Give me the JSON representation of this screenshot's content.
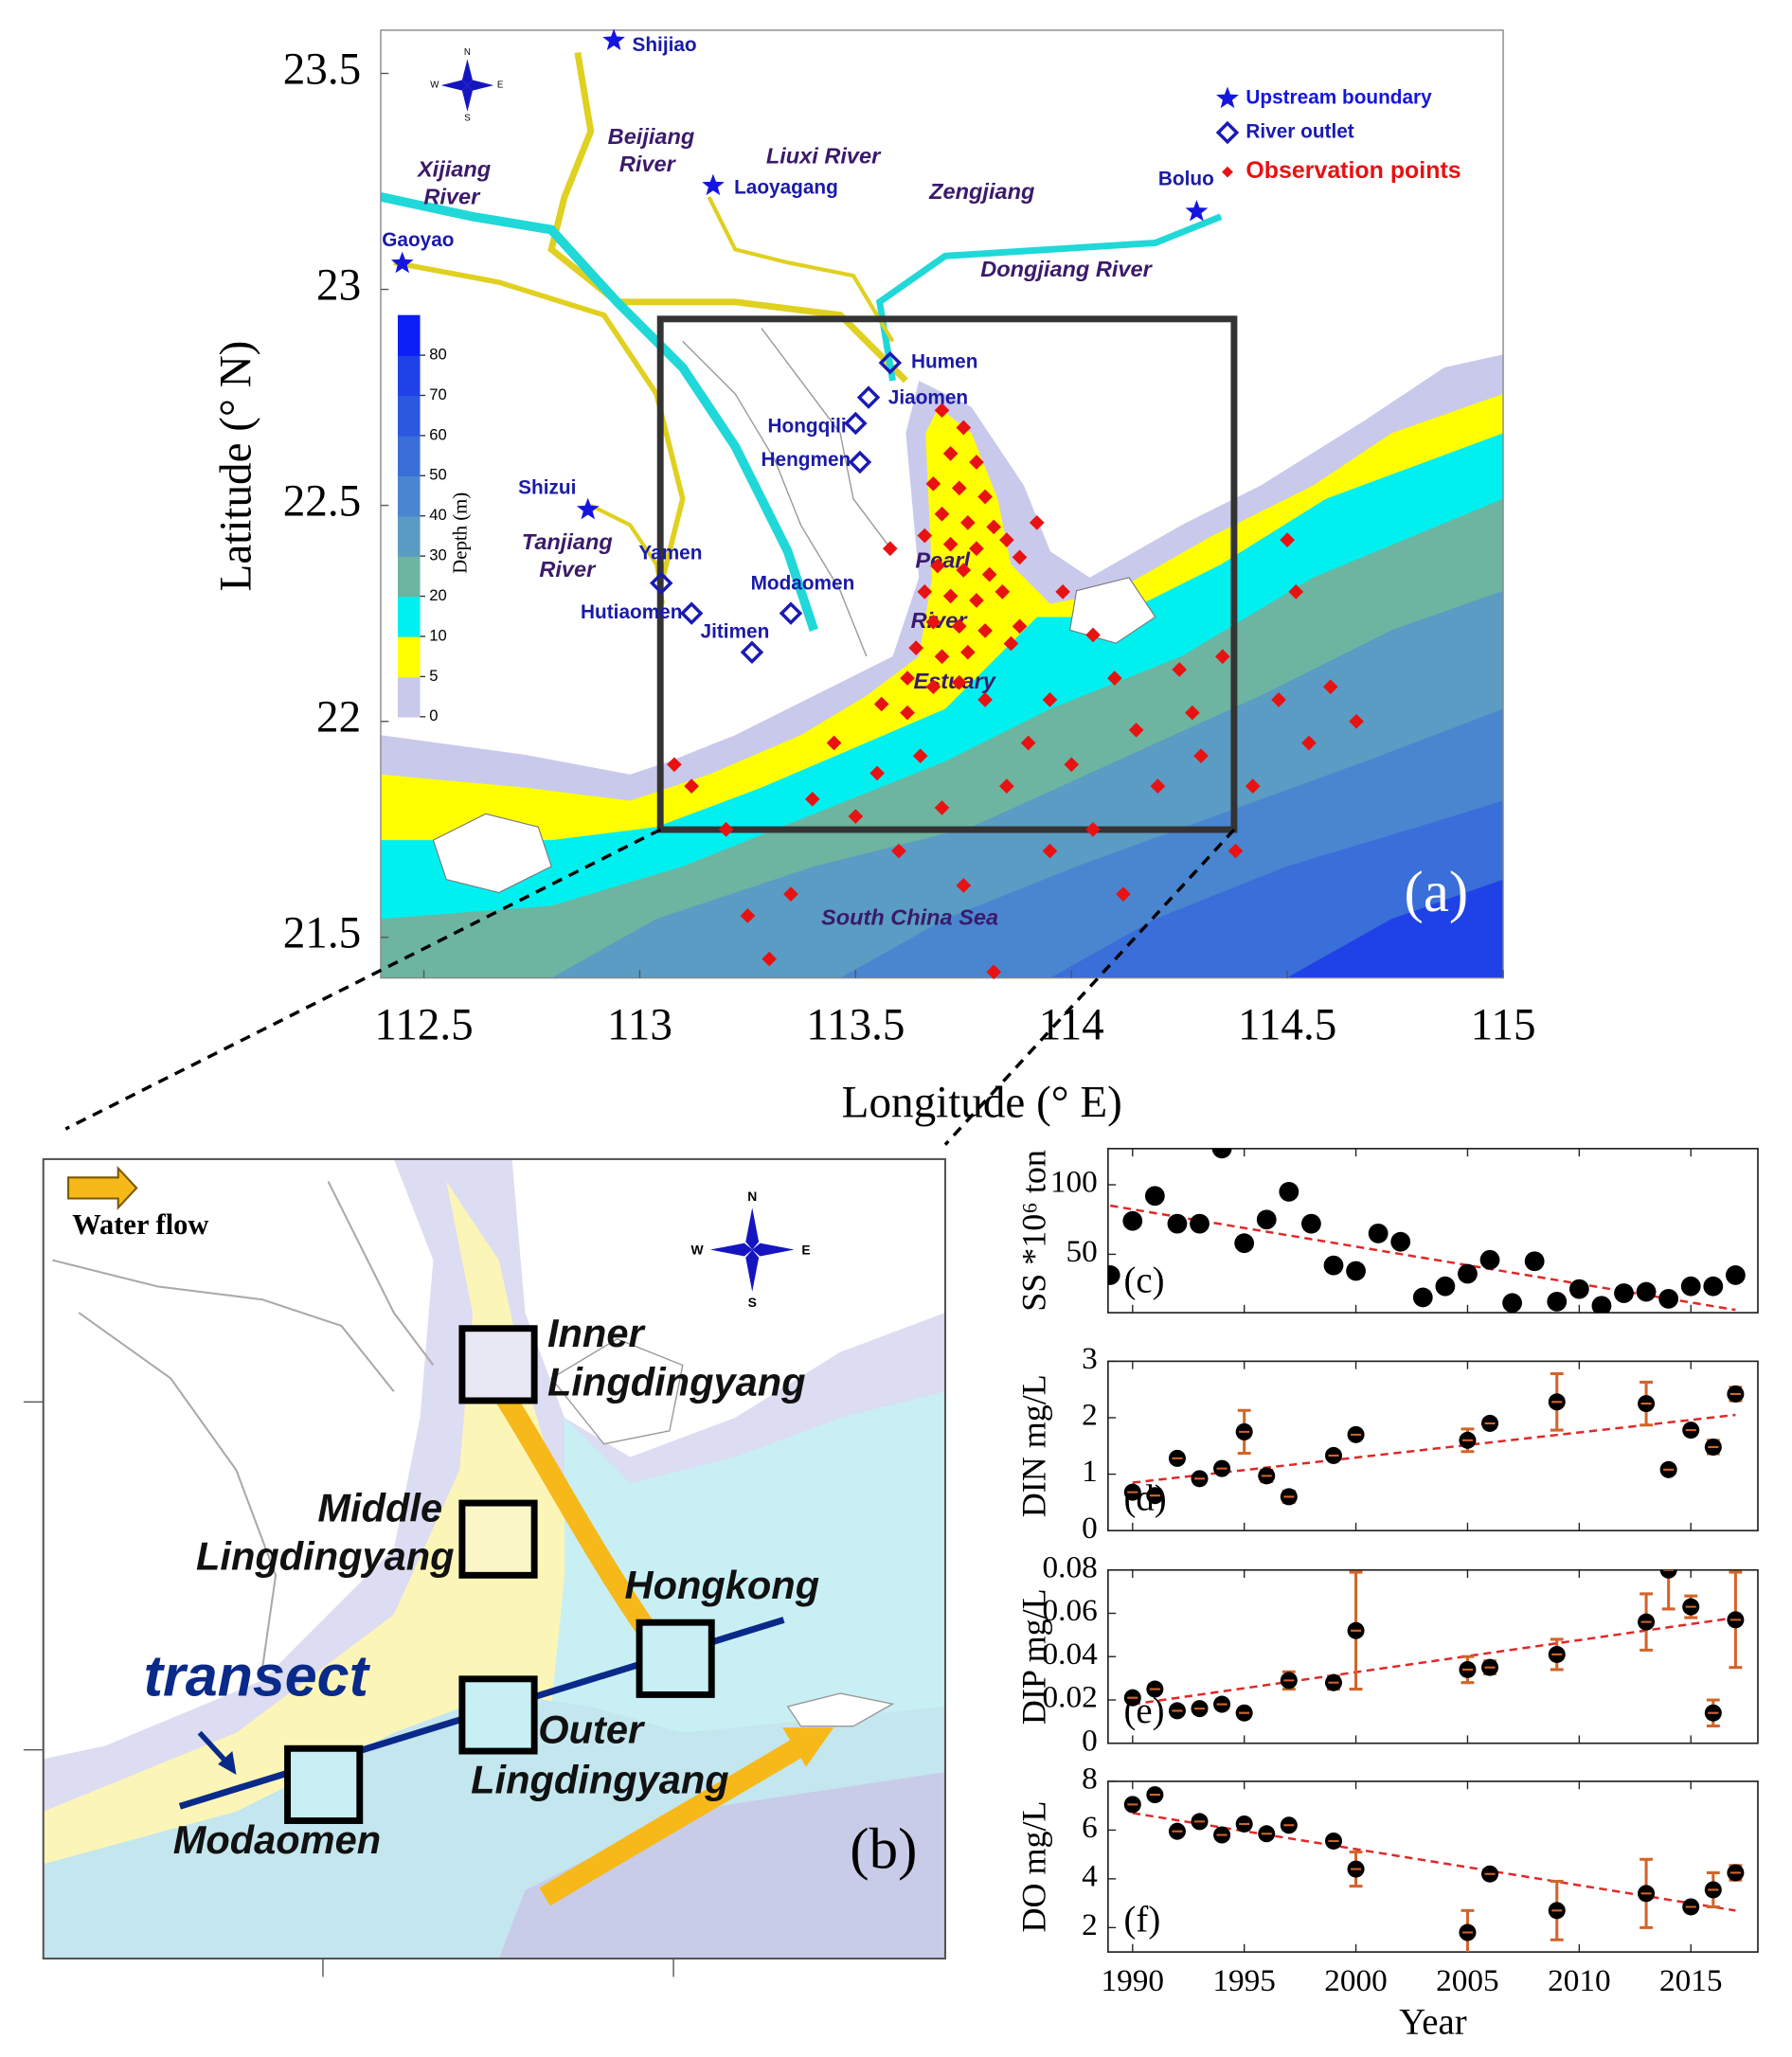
{
  "map_a": {
    "panel_label": "(a)",
    "xlabel": "Longitude (° E)",
    "ylabel": "Latitude (° N)",
    "xlim": [
      112.4,
      115
    ],
    "ylim": [
      21.406,
      23.6
    ],
    "xticks": [
      112.5,
      113,
      113.5,
      114,
      114.5,
      115
    ],
    "yticks": [
      21.5,
      22,
      22.5,
      23,
      23.5
    ],
    "compass": [
      "N",
      "S",
      "W",
      "E"
    ],
    "places": [
      {
        "lines": [
          "Beijiang",
          "River"
        ]
      },
      {
        "lines": [
          "Xijiang",
          "River"
        ]
      },
      {
        "lines": [
          "Liuxi River"
        ]
      },
      {
        "lines": [
          "Zengjiang"
        ]
      },
      {
        "lines": [
          "Dongjiang River"
        ]
      },
      {
        "lines": [
          "Tanjiang",
          "River"
        ]
      },
      {
        "lines": [
          "Pearl",
          "River",
          "Estuary"
        ]
      },
      {
        "lines": [
          "South China Sea"
        ]
      }
    ],
    "legend": [
      {
        "label": "Upstream boundary",
        "color": "#1515e0"
      },
      {
        "label": "River outlet",
        "color": "#1a1ab4"
      },
      {
        "label": "Observation points",
        "color": "#e81212"
      }
    ],
    "upstream_boundaries": [
      {
        "name": "Shijiao",
        "lon": 112.94,
        "lat": 23.576
      },
      {
        "name": "Gaoyao",
        "lon": 112.45,
        "lat": 23.06
      },
      {
        "name": "Laoyagang",
        "lon": 113.17,
        "lat": 23.24
      },
      {
        "name": "Boluo",
        "lon": 114.29,
        "lat": 23.18
      },
      {
        "name": "Shizui",
        "lon": 112.88,
        "lat": 22.49
      }
    ],
    "river_outlets": [
      {
        "name": "Humen",
        "lon": 113.58,
        "lat": 22.83
      },
      {
        "name": "Jiaomen",
        "lon": 113.53,
        "lat": 22.75
      },
      {
        "name": "Hongqili",
        "lon": 113.5,
        "lat": 22.69
      },
      {
        "name": "Hengmen",
        "lon": 113.51,
        "lat": 22.6
      },
      {
        "name": "Yamen",
        "lon": 113.05,
        "lat": 22.32
      },
      {
        "name": "Hutiaomen",
        "lon": 113.12,
        "lat": 22.25
      },
      {
        "name": "Modaomen",
        "lon": 113.35,
        "lat": 22.25
      },
      {
        "name": "Jitimen",
        "lon": 113.26,
        "lat": 22.16
      }
    ],
    "observation_points": [
      [
        113.7,
        22.72
      ],
      [
        113.75,
        22.68
      ],
      [
        113.72,
        22.62
      ],
      [
        113.78,
        22.6
      ],
      [
        113.68,
        22.55
      ],
      [
        113.74,
        22.54
      ],
      [
        113.8,
        22.52
      ],
      [
        113.7,
        22.48
      ],
      [
        113.76,
        22.46
      ],
      [
        113.82,
        22.45
      ],
      [
        113.66,
        22.43
      ],
      [
        113.72,
        22.41
      ],
      [
        113.78,
        22.4
      ],
      [
        113.85,
        22.42
      ],
      [
        113.69,
        22.36
      ],
      [
        113.75,
        22.35
      ],
      [
        113.81,
        22.34
      ],
      [
        113.88,
        22.38
      ],
      [
        113.66,
        22.3
      ],
      [
        113.72,
        22.29
      ],
      [
        113.78,
        22.28
      ],
      [
        113.84,
        22.3
      ],
      [
        113.68,
        22.23
      ],
      [
        113.74,
        22.22
      ],
      [
        113.8,
        22.21
      ],
      [
        113.64,
        22.17
      ],
      [
        113.7,
        22.15
      ],
      [
        113.76,
        22.16
      ],
      [
        113.86,
        22.18
      ],
      [
        113.62,
        22.1
      ],
      [
        113.68,
        22.08
      ],
      [
        113.74,
        22.09
      ],
      [
        113.56,
        22.04
      ],
      [
        113.62,
        22.02
      ],
      [
        113.8,
        22.05
      ],
      [
        113.58,
        22.4
      ],
      [
        113.92,
        22.46
      ],
      [
        113.08,
        21.9
      ],
      [
        113.12,
        21.85
      ],
      [
        113.2,
        21.75
      ],
      [
        113.25,
        21.55
      ],
      [
        113.3,
        21.45
      ],
      [
        113.4,
        21.82
      ],
      [
        113.45,
        21.95
      ],
      [
        113.5,
        21.78
      ],
      [
        113.55,
        21.88
      ],
      [
        113.6,
        21.7
      ],
      [
        113.65,
        21.92
      ],
      [
        113.7,
        21.8
      ],
      [
        113.75,
        21.62
      ],
      [
        113.82,
        21.42
      ],
      [
        113.85,
        21.85
      ],
      [
        113.9,
        21.95
      ],
      [
        113.95,
        22.05
      ],
      [
        114.0,
        21.9
      ],
      [
        114.05,
        21.75
      ],
      [
        114.1,
        22.1
      ],
      [
        114.15,
        21.98
      ],
      [
        114.2,
        21.85
      ],
      [
        114.25,
        22.12
      ],
      [
        114.28,
        22.02
      ],
      [
        114.3,
        21.92
      ],
      [
        114.35,
        22.15
      ],
      [
        114.42,
        21.85
      ],
      [
        114.48,
        22.05
      ],
      [
        114.5,
        22.42
      ],
      [
        114.52,
        22.3
      ],
      [
        114.55,
        21.95
      ],
      [
        114.6,
        22.08
      ],
      [
        114.66,
        22.0
      ],
      [
        114.38,
        21.7
      ],
      [
        114.12,
        21.6
      ],
      [
        113.95,
        21.7
      ],
      [
        113.35,
        21.6
      ],
      [
        113.88,
        22.22
      ],
      [
        114.05,
        22.2
      ],
      [
        113.98,
        22.3
      ]
    ],
    "colorbar": {
      "label": "Depth (m)",
      "ticks": [
        0,
        5,
        10,
        20,
        30,
        40,
        50,
        60,
        70,
        80
      ],
      "colors": [
        "#c9c9ec",
        "#ffff00",
        "#00f0f0",
        "#6db5a0",
        "#5a9cc4",
        "#4a86d0",
        "#3a6ed8",
        "#2c58e0",
        "#1e42e8",
        "#0a1ef5"
      ]
    }
  },
  "map_b": {
    "panel_label": "(b)",
    "compass": [
      "N",
      "S",
      "W",
      "E"
    ],
    "water_flow": "Water flow",
    "inner": [
      "Inner",
      "Lingdingyang"
    ],
    "middle": [
      "Middle",
      "Lingdingyang"
    ],
    "hongkong": "Hongkong",
    "transect": "transect",
    "outer": [
      "Outer",
      "Lingdingyang"
    ],
    "modaomen": "Modaomen"
  },
  "chart_data": [
    {
      "type": "scatter",
      "panel_label": "(c)",
      "ylabel": "SS *10⁶ ton",
      "x": [
        1989,
        1990,
        1991,
        1992,
        1993,
        1994,
        1995,
        1996,
        1997,
        1998,
        1999,
        2000,
        2001,
        2002,
        2003,
        2004,
        2005,
        2006,
        2007,
        2008,
        2009,
        2010,
        2011,
        2012,
        2013,
        2014,
        2015,
        2016,
        2017
      ],
      "values": [
        35,
        74,
        92,
        72,
        72,
        126,
        58,
        75,
        95,
        72,
        42,
        38,
        65,
        59,
        19,
        27,
        36,
        46,
        15,
        45,
        16,
        25,
        13,
        22,
        23,
        18,
        27,
        27,
        35
      ],
      "color": "#000000",
      "trend": {
        "x": [
          1989,
          2017
        ],
        "values": [
          85,
          10
        ]
      },
      "trend_color": "#e02828",
      "xlim": [
        1988.9,
        2018
      ],
      "ylim": [
        8,
        126
      ],
      "xticks": [
        1990,
        1995,
        2000,
        2005,
        2010,
        2015
      ],
      "yticks": [
        50,
        100
      ],
      "show_xtick_labels": false
    },
    {
      "type": "errorbar",
      "panel_label": "(d)",
      "ylabel": "DIN mg/L",
      "x": [
        1990,
        1991,
        1992,
        1993,
        1994,
        1995,
        1996,
        1997,
        1999,
        2000,
        2005,
        2006,
        2009,
        2013,
        2014,
        2015,
        2016,
        2017
      ],
      "values": [
        0.68,
        0.62,
        1.28,
        0.92,
        1.1,
        1.75,
        0.97,
        0.6,
        1.33,
        1.7,
        1.6,
        1.9,
        2.28,
        2.25,
        1.08,
        1.78,
        1.48,
        2.42
      ],
      "errors": [
        0.05,
        0.04,
        0.05,
        0.05,
        0.05,
        0.38,
        0.1,
        0.1,
        0.05,
        0.06,
        0.2,
        0.08,
        0.5,
        0.38,
        0.06,
        0.06,
        0.12,
        0.12
      ],
      "color": "#000000",
      "error_color": "#d2642a",
      "trend": {
        "x": [
          1990,
          2017
        ],
        "values": [
          0.85,
          2.05
        ]
      },
      "trend_color": "#e02828",
      "xlim": [
        1988.9,
        2018
      ],
      "ylim": [
        0,
        3
      ],
      "xticks": [
        1990,
        1995,
        2000,
        2005,
        2010,
        2015
      ],
      "yticks": [
        0,
        1,
        2,
        3
      ],
      "show_xtick_labels": false
    },
    {
      "type": "errorbar",
      "panel_label": "(e)",
      "ylabel": "DIP mg/L",
      "x": [
        1990,
        1991,
        1992,
        1993,
        1994,
        1995,
        1997,
        1999,
        2000,
        2005,
        2006,
        2009,
        2013,
        2014,
        2015,
        2016,
        2017
      ],
      "values": [
        0.021,
        0.025,
        0.015,
        0.016,
        0.018,
        0.014,
        0.029,
        0.028,
        0.052,
        0.034,
        0.035,
        0.041,
        0.056,
        0.08,
        0.063,
        0.014,
        0.057
      ],
      "errors": [
        0.002,
        0.002,
        0.002,
        0.002,
        0.002,
        0.002,
        0.004,
        0.003,
        0.027,
        0.006,
        0.003,
        0.007,
        0.013,
        0.018,
        0.005,
        0.006,
        0.022
      ],
      "color": "#000000",
      "error_color": "#d2642a",
      "trend": {
        "x": [
          1990,
          2017
        ],
        "values": [
          0.018,
          0.058
        ]
      },
      "trend_color": "#e02828",
      "xlim": [
        1988.9,
        2018
      ],
      "ylim": [
        0,
        0.08
      ],
      "xticks": [
        1990,
        1995,
        2000,
        2005,
        2010,
        2015
      ],
      "yticks": [
        0,
        0.02,
        0.04,
        0.06,
        0.08
      ],
      "show_xtick_labels": false
    },
    {
      "type": "errorbar",
      "panel_label": "(f)",
      "ylabel": "DO mg/L",
      "xlabel": "Year",
      "x": [
        1990,
        1991,
        1992,
        1993,
        1994,
        1995,
        1996,
        1997,
        1999,
        2000,
        2005,
        2006,
        2009,
        2013,
        2015,
        2016,
        2017
      ],
      "values": [
        7.05,
        7.45,
        5.95,
        6.35,
        5.8,
        6.25,
        5.85,
        6.2,
        5.55,
        4.4,
        1.8,
        4.2,
        2.7,
        3.4,
        2.85,
        3.55,
        4.25
      ],
      "errors": [
        0.1,
        0.1,
        0.1,
        0.1,
        0.1,
        0.1,
        0.1,
        0.1,
        0.15,
        0.7,
        0.9,
        0.1,
        1.2,
        1.4,
        0.1,
        0.7,
        0.3
      ],
      "color": "#000000",
      "error_color": "#d2642a",
      "trend": {
        "x": [
          1990,
          2017
        ],
        "values": [
          6.7,
          2.7
        ]
      },
      "trend_color": "#e02828",
      "xlim": [
        1988.9,
        2018
      ],
      "ylim": [
        1,
        8
      ],
      "xticks": [
        1990,
        1995,
        2000,
        2005,
        2010,
        2015
      ],
      "yticks": [
        2,
        4,
        6,
        8
      ],
      "show_xtick_labels": true
    }
  ]
}
